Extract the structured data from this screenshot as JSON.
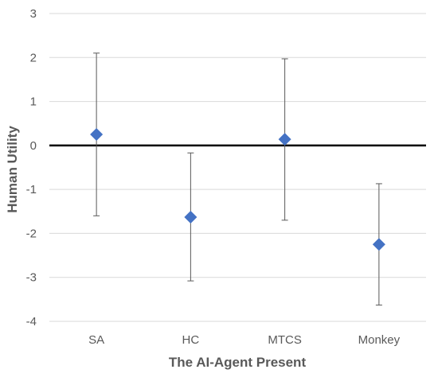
{
  "chart_data": {
    "type": "scatter",
    "title": "",
    "xlabel": "The AI-Agent Present",
    "ylabel": "Human Utility",
    "categories": [
      "SA",
      "HC",
      "MTCS",
      "Monkey"
    ],
    "ylim": [
      -4,
      3
    ],
    "yticks": [
      "3",
      "2",
      "1",
      "0",
      "-1",
      "-2",
      "-3",
      "-4"
    ],
    "grid": true,
    "legend": "none",
    "reference_line_y": 0,
    "series": [
      {
        "values": [
          0.25,
          -1.63,
          0.14,
          -2.25
        ],
        "error_low": [
          -1.6,
          -3.08,
          -1.7,
          -3.63
        ],
        "error_high": [
          2.1,
          -0.17,
          1.97,
          -0.87
        ]
      }
    ],
    "colors": {
      "marker": "#4472C4",
      "error_bar": "#595959",
      "gridline": "#d9d9d9",
      "zero_line": "#000000",
      "text": "#595959"
    },
    "marker_shape": "diamond"
  }
}
